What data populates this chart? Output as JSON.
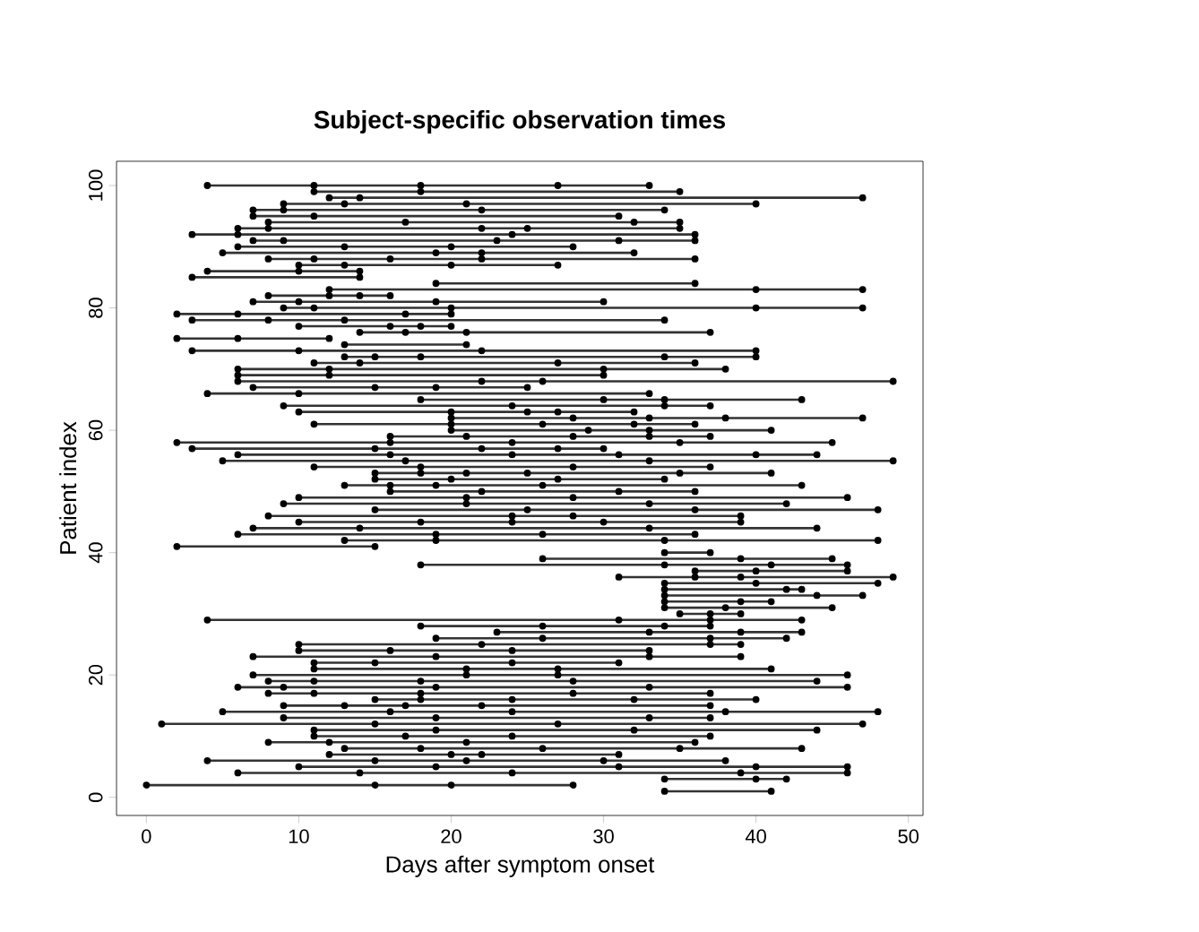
{
  "chart_data": {
    "type": "line",
    "title": "Subject-specific observation times",
    "xlabel": "Days after symptom onset",
    "ylabel": "Patient index",
    "xlim": [
      -1.96,
      50.96
    ],
    "ylim": [
      -2.96,
      103.96
    ],
    "xticks": [
      0,
      10,
      20,
      30,
      40,
      50
    ],
    "yticks": [
      0,
      20,
      40,
      60,
      80,
      100
    ],
    "color": "#333333",
    "marker": "circle",
    "line_style": "solid",
    "grid": false,
    "series": [
      {
        "x": [
          34,
          41
        ],
        "values": [
          1,
          1
        ]
      },
      {
        "x": [
          0,
          15,
          20,
          28
        ],
        "values": [
          2,
          2,
          2,
          2
        ]
      },
      {
        "x": [
          34,
          40,
          42
        ],
        "values": [
          3,
          3,
          3
        ]
      },
      {
        "x": [
          6,
          14,
          24,
          39,
          46
        ],
        "values": [
          4,
          4,
          4,
          4,
          4
        ]
      },
      {
        "x": [
          10,
          19,
          31,
          40,
          46
        ],
        "values": [
          5,
          5,
          5,
          5,
          5
        ]
      },
      {
        "x": [
          4,
          15,
          21,
          30,
          38
        ],
        "values": [
          6,
          6,
          6,
          6,
          6
        ]
      },
      {
        "x": [
          12,
          20,
          22,
          31
        ],
        "values": [
          7,
          7,
          7,
          7
        ]
      },
      {
        "x": [
          13,
          18,
          26,
          35,
          43
        ],
        "values": [
          8,
          8,
          8,
          8,
          8
        ]
      },
      {
        "x": [
          8,
          12,
          21,
          36
        ],
        "values": [
          9,
          9,
          9,
          9
        ]
      },
      {
        "x": [
          11,
          17,
          24,
          37
        ],
        "values": [
          10,
          10,
          10,
          10
        ]
      },
      {
        "x": [
          11,
          19,
          32,
          44
        ],
        "values": [
          11,
          11,
          11,
          11
        ]
      },
      {
        "x": [
          1,
          15,
          27,
          47
        ],
        "values": [
          12,
          12,
          12,
          12
        ]
      },
      {
        "x": [
          9,
          19,
          33,
          37
        ],
        "values": [
          13,
          13,
          13,
          13
        ]
      },
      {
        "x": [
          5,
          16,
          24,
          38,
          48
        ],
        "values": [
          14,
          14,
          14,
          14,
          14
        ]
      },
      {
        "x": [
          9,
          13,
          17,
          22,
          37
        ],
        "values": [
          15,
          15,
          15,
          15,
          15
        ]
      },
      {
        "x": [
          15,
          18,
          24,
          32,
          40
        ],
        "values": [
          16,
          16,
          16,
          16,
          16
        ]
      },
      {
        "x": [
          8,
          11,
          18,
          28,
          37
        ],
        "values": [
          17,
          17,
          17,
          17,
          17
        ]
      },
      {
        "x": [
          6,
          9,
          19,
          33,
          46
        ],
        "values": [
          18,
          18,
          18,
          18,
          18
        ]
      },
      {
        "x": [
          8,
          11,
          18,
          28,
          44
        ],
        "values": [
          19,
          19,
          19,
          19,
          19
        ]
      },
      {
        "x": [
          7,
          21,
          27,
          46
        ],
        "values": [
          20,
          20,
          20,
          20
        ]
      },
      {
        "x": [
          11,
          21,
          27,
          41
        ],
        "values": [
          21,
          21,
          21,
          21
        ]
      },
      {
        "x": [
          11,
          15,
          24,
          31
        ],
        "values": [
          22,
          22,
          22,
          22
        ]
      },
      {
        "x": [
          7,
          19,
          33,
          39
        ],
        "values": [
          23,
          23,
          23,
          23
        ]
      },
      {
        "x": [
          10,
          16,
          24,
          33
        ],
        "values": [
          24,
          24,
          24,
          24
        ]
      },
      {
        "x": [
          10,
          22,
          37,
          39
        ],
        "values": [
          25,
          25,
          25,
          25
        ]
      },
      {
        "x": [
          19,
          26,
          37,
          42
        ],
        "values": [
          26,
          26,
          26,
          26
        ]
      },
      {
        "x": [
          23,
          33,
          39,
          43
        ],
        "values": [
          27,
          27,
          27,
          27
        ]
      },
      {
        "x": [
          18,
          26,
          34,
          37
        ],
        "values": [
          28,
          28,
          28,
          28
        ]
      },
      {
        "x": [
          4,
          31,
          37,
          43
        ],
        "values": [
          29,
          29,
          29,
          29
        ]
      },
      {
        "x": [
          35,
          37,
          39
        ],
        "values": [
          30,
          30,
          30
        ]
      },
      {
        "x": [
          34,
          38,
          45
        ],
        "values": [
          31,
          31,
          31
        ]
      },
      {
        "x": [
          34,
          39,
          41
        ],
        "values": [
          32,
          32,
          32
        ]
      },
      {
        "x": [
          34,
          44,
          47
        ],
        "values": [
          33,
          33,
          33
        ]
      },
      {
        "x": [
          34,
          42,
          43
        ],
        "values": [
          34,
          34,
          34
        ]
      },
      {
        "x": [
          34,
          40,
          48
        ],
        "values": [
          35,
          35,
          35
        ]
      },
      {
        "x": [
          31,
          36,
          39,
          49
        ],
        "values": [
          36,
          36,
          36,
          36
        ]
      },
      {
        "x": [
          36,
          40,
          46
        ],
        "values": [
          37,
          37,
          37
        ]
      },
      {
        "x": [
          18,
          34,
          41,
          46
        ],
        "values": [
          38,
          38,
          38,
          38
        ]
      },
      {
        "x": [
          26,
          39,
          45
        ],
        "values": [
          39,
          39,
          39
        ]
      },
      {
        "x": [
          34,
          37
        ],
        "values": [
          40,
          40
        ]
      },
      {
        "x": [
          2,
          15
        ],
        "values": [
          41,
          41
        ]
      },
      {
        "x": [
          13,
          19,
          34,
          48
        ],
        "values": [
          42,
          42,
          42,
          42
        ]
      },
      {
        "x": [
          6,
          19,
          26,
          36
        ],
        "values": [
          43,
          43,
          43,
          43
        ]
      },
      {
        "x": [
          7,
          14,
          33,
          44
        ],
        "values": [
          44,
          44,
          44,
          44
        ]
      },
      {
        "x": [
          10,
          18,
          24,
          30,
          39
        ],
        "values": [
          45,
          45,
          45,
          45,
          45
        ]
      },
      {
        "x": [
          8,
          24,
          28,
          39
        ],
        "values": [
          46,
          46,
          46,
          46
        ]
      },
      {
        "x": [
          15,
          25,
          36,
          48
        ],
        "values": [
          47,
          47,
          47,
          47
        ]
      },
      {
        "x": [
          9,
          21,
          33,
          42
        ],
        "values": [
          48,
          48,
          48,
          48
        ]
      },
      {
        "x": [
          10,
          21,
          28,
          46
        ],
        "values": [
          49,
          49,
          49,
          49
        ]
      },
      {
        "x": [
          16,
          22,
          31,
          36
        ],
        "values": [
          50,
          50,
          50,
          50
        ]
      },
      {
        "x": [
          13,
          16,
          19,
          26,
          43
        ],
        "values": [
          51,
          51,
          51,
          51,
          51
        ]
      },
      {
        "x": [
          15,
          20,
          27,
          34
        ],
        "values": [
          52,
          52,
          52,
          52
        ]
      },
      {
        "x": [
          15,
          18,
          21,
          25,
          35,
          41
        ],
        "values": [
          53,
          53,
          53,
          53,
          53,
          53
        ]
      },
      {
        "x": [
          11,
          18,
          28,
          37
        ],
        "values": [
          54,
          54,
          54,
          54
        ]
      },
      {
        "x": [
          5,
          17,
          33,
          49
        ],
        "values": [
          55,
          55,
          55,
          55
        ]
      },
      {
        "x": [
          6,
          16,
          24,
          31,
          40,
          44
        ],
        "values": [
          56,
          56,
          56,
          56,
          56,
          56
        ]
      },
      {
        "x": [
          3,
          15,
          22,
          27,
          30
        ],
        "values": [
          57,
          57,
          57,
          57,
          57
        ]
      },
      {
        "x": [
          2,
          16,
          24,
          35,
          45
        ],
        "values": [
          58,
          58,
          58,
          58,
          58
        ]
      },
      {
        "x": [
          16,
          21,
          28,
          33,
          37
        ],
        "values": [
          59,
          59,
          59,
          59,
          59
        ]
      },
      {
        "x": [
          20,
          29,
          33,
          41
        ],
        "values": [
          60,
          60,
          60,
          60
        ]
      },
      {
        "x": [
          11,
          20,
          26,
          32,
          36
        ],
        "values": [
          61,
          61,
          61,
          61,
          61
        ]
      },
      {
        "x": [
          20,
          28,
          33,
          38,
          47
        ],
        "values": [
          62,
          62,
          62,
          62,
          62
        ]
      },
      {
        "x": [
          10,
          20,
          25,
          27,
          32
        ],
        "values": [
          63,
          63,
          63,
          63,
          63
        ]
      },
      {
        "x": [
          9,
          24,
          34,
          37
        ],
        "values": [
          64,
          64,
          64,
          64
        ]
      },
      {
        "x": [
          18,
          30,
          34,
          43
        ],
        "values": [
          65,
          65,
          65,
          65
        ]
      },
      {
        "x": [
          4,
          10,
          33
        ],
        "values": [
          66,
          66,
          66
        ]
      },
      {
        "x": [
          7,
          15,
          19,
          25
        ],
        "values": [
          67,
          67,
          67,
          67
        ]
      },
      {
        "x": [
          6,
          22,
          26,
          49
        ],
        "values": [
          68,
          68,
          68,
          68
        ]
      },
      {
        "x": [
          6,
          12,
          30
        ],
        "values": [
          69,
          69,
          69
        ]
      },
      {
        "x": [
          6,
          12,
          30,
          38
        ],
        "values": [
          70,
          70,
          70,
          70
        ]
      },
      {
        "x": [
          11,
          14,
          27,
          36
        ],
        "values": [
          71,
          71,
          71,
          71
        ]
      },
      {
        "x": [
          13,
          15,
          18,
          34,
          40
        ],
        "values": [
          72,
          72,
          72,
          72,
          72
        ]
      },
      {
        "x": [
          3,
          10,
          22,
          40
        ],
        "values": [
          73,
          73,
          73,
          73
        ]
      },
      {
        "x": [
          13,
          21
        ],
        "values": [
          74,
          74
        ]
      },
      {
        "x": [
          2,
          6,
          12
        ],
        "values": [
          75,
          75,
          75
        ]
      },
      {
        "x": [
          14,
          17,
          21,
          37
        ],
        "values": [
          76,
          76,
          76,
          76
        ]
      },
      {
        "x": [
          10,
          16,
          18,
          20
        ],
        "values": [
          77,
          77,
          77,
          77
        ]
      },
      {
        "x": [
          3,
          8,
          13,
          34
        ],
        "values": [
          78,
          78,
          78,
          78
        ]
      },
      {
        "x": [
          2,
          6,
          17,
          20
        ],
        "values": [
          79,
          79,
          79,
          79
        ]
      },
      {
        "x": [
          9,
          11,
          20,
          40,
          47
        ],
        "values": [
          80,
          80,
          80,
          80,
          80
        ]
      },
      {
        "x": [
          7,
          10,
          19,
          30
        ],
        "values": [
          81,
          81,
          81,
          81
        ]
      },
      {
        "x": [
          8,
          12,
          14,
          16
        ],
        "values": [
          82,
          82,
          82,
          82
        ]
      },
      {
        "x": [
          12,
          40,
          47
        ],
        "values": [
          83,
          83,
          83
        ]
      },
      {
        "x": [
          19,
          36
        ],
        "values": [
          84,
          84
        ]
      },
      {
        "x": [
          3,
          14
        ],
        "values": [
          85,
          85
        ]
      },
      {
        "x": [
          4,
          10,
          14
        ],
        "values": [
          86,
          86,
          86
        ]
      },
      {
        "x": [
          10,
          13,
          20,
          27
        ],
        "values": [
          87,
          87,
          87,
          87
        ]
      },
      {
        "x": [
          8,
          11,
          16,
          22,
          36
        ],
        "values": [
          88,
          88,
          88,
          88,
          88
        ]
      },
      {
        "x": [
          5,
          19,
          22,
          32
        ],
        "values": [
          89,
          89,
          89,
          89
        ]
      },
      {
        "x": [
          6,
          13,
          20,
          28
        ],
        "values": [
          90,
          90,
          90,
          90
        ]
      },
      {
        "x": [
          7,
          9,
          23,
          31,
          36
        ],
        "values": [
          91,
          91,
          91,
          91,
          91
        ]
      },
      {
        "x": [
          3,
          6,
          24,
          36
        ],
        "values": [
          92,
          92,
          92,
          92
        ]
      },
      {
        "x": [
          6,
          8,
          22,
          25,
          35
        ],
        "values": [
          93,
          93,
          93,
          93,
          93
        ]
      },
      {
        "x": [
          8,
          17,
          32,
          35
        ],
        "values": [
          94,
          94,
          94,
          94
        ]
      },
      {
        "x": [
          7,
          11,
          31
        ],
        "values": [
          95,
          95,
          95
        ]
      },
      {
        "x": [
          7,
          9,
          22,
          34
        ],
        "values": [
          96,
          96,
          96,
          96
        ]
      },
      {
        "x": [
          9,
          13,
          21,
          40
        ],
        "values": [
          97,
          97,
          97,
          97
        ]
      },
      {
        "x": [
          12,
          14,
          47
        ],
        "values": [
          98,
          98,
          98
        ]
      },
      {
        "x": [
          11,
          18,
          35
        ],
        "values": [
          99,
          99,
          99
        ]
      },
      {
        "x": [
          4,
          11,
          18,
          27,
          33
        ],
        "values": [
          100,
          100,
          100,
          100,
          100
        ]
      }
    ]
  }
}
